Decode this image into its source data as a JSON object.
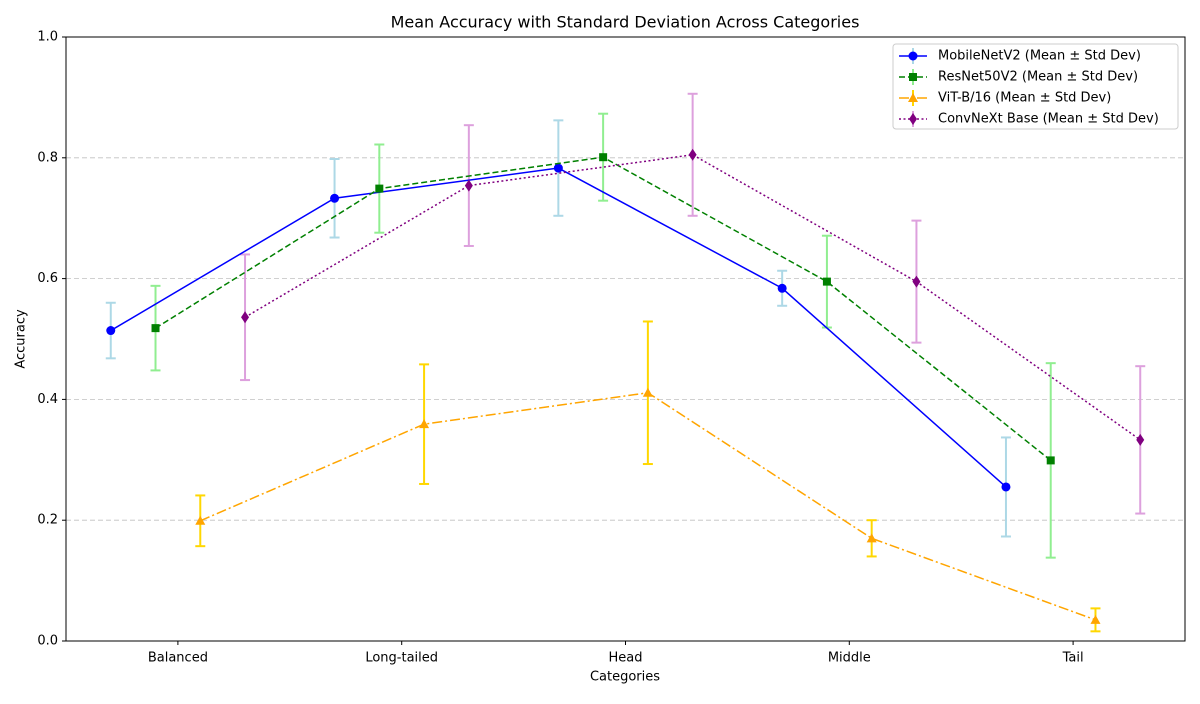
{
  "chart_data": {
    "type": "errorbar-line",
    "title": "Mean Accuracy with Standard Deviation Across Categories",
    "x_label": "Categories",
    "y_label": "Accuracy",
    "categories": [
      "Balanced",
      "Long-tailed",
      "Head",
      "Middle",
      "Tail"
    ],
    "ylim": [
      0,
      1
    ],
    "yticks": [
      {
        "value": 0,
        "label": "0.0"
      },
      0.2,
      0.4,
      0.6,
      0.8,
      {
        "value": 1,
        "label": "1.0"
      }
    ],
    "grid": "y",
    "legend": "upper right",
    "series": [
      {
        "name": "MobileNetV2 (Mean ± Std Dev)",
        "color": "#0000ff",
        "error_color": "#add8e6",
        "linestyle": "solid",
        "marker": "circle",
        "values": [
          0.514,
          0.733,
          0.783,
          0.584,
          0.255
        ],
        "errors": [
          0.046,
          0.065,
          0.079,
          0.029,
          0.082
        ]
      },
      {
        "name": "ResNet50V2 (Mean ± Std Dev)",
        "color": "#008000",
        "error_color": "#90ee90",
        "linestyle": "dashed",
        "marker": "square",
        "values": [
          0.518,
          0.749,
          0.801,
          0.595,
          0.299
        ],
        "errors": [
          0.07,
          0.073,
          0.072,
          0.076,
          0.161
        ]
      },
      {
        "name": "ViT-B/16 (Mean ± Std Dev)",
        "color": "#ffa500",
        "error_color": "#ffd700",
        "linestyle": "dashdot",
        "marker": "triangle",
        "values": [
          0.199,
          0.359,
          0.411,
          0.17,
          0.035
        ],
        "errors": [
          0.042,
          0.099,
          0.118,
          0.03,
          0.019
        ]
      },
      {
        "name": "ConvNeXt Base (Mean ± Std Dev)",
        "color": "#800080",
        "error_color": "#dda0dd",
        "linestyle": "dotted",
        "marker": "diamond",
        "values": [
          0.536,
          0.754,
          0.805,
          0.595,
          0.333
        ],
        "errors": [
          0.104,
          0.1,
          0.101,
          0.101,
          0.122
        ]
      }
    ]
  }
}
